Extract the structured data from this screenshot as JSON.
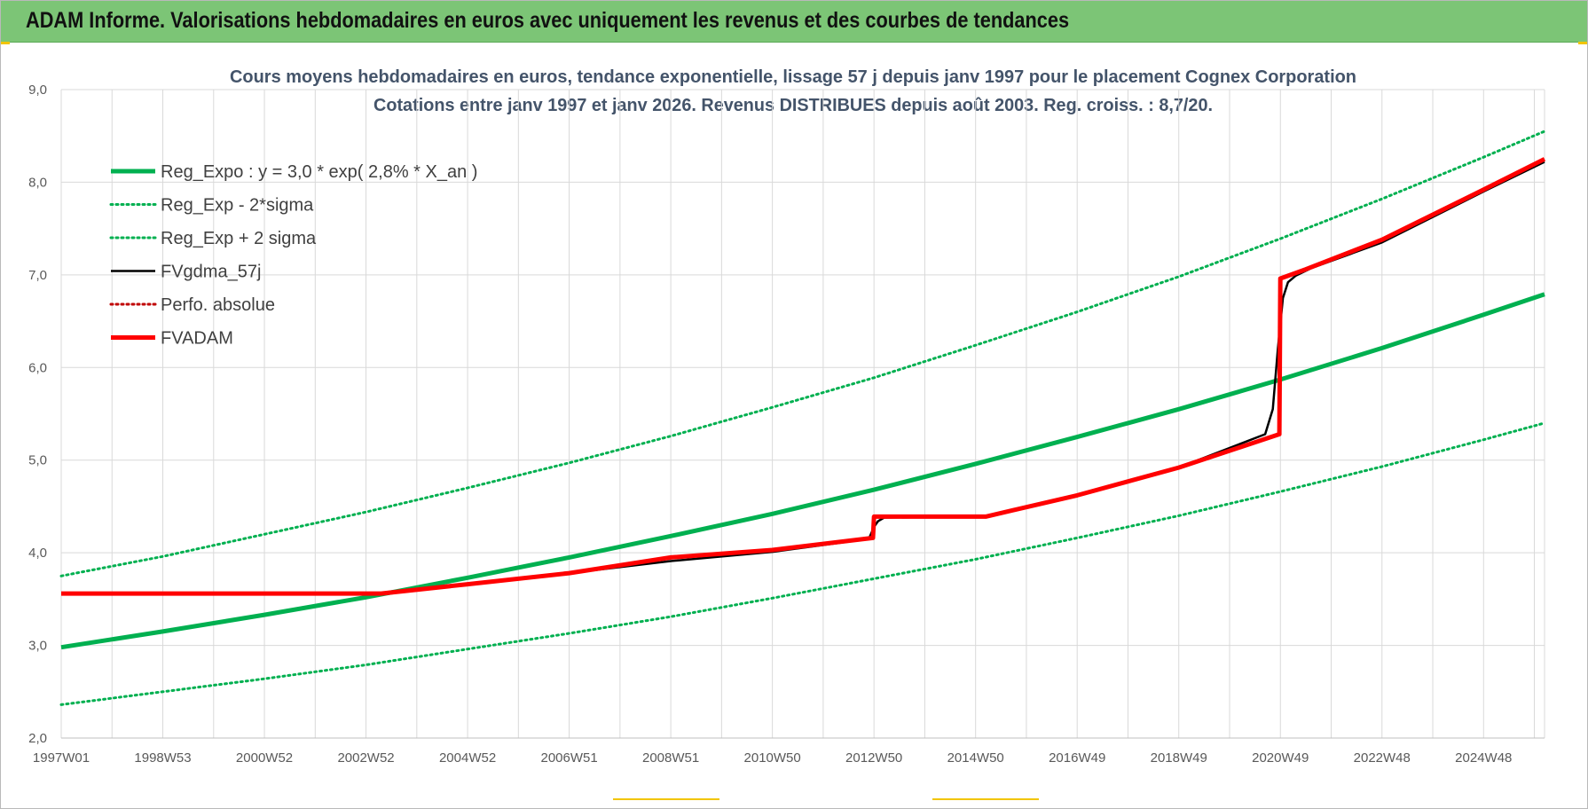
{
  "banner": {
    "title": "ADAM Informe. Valorisations hebdomadaires en euros avec uniquement les revenus et des courbes de tendances"
  },
  "colors": {
    "banner_bg": "#7cc576",
    "regression": "#00b050",
    "fvgdma": "#000000",
    "fvadam": "#ff0000",
    "perfo": "#c00000",
    "grid": "#d9d9d9"
  },
  "chart_data": {
    "type": "line",
    "title_line1": "Cours moyens hebdomadaires en euros, tendance exponentielle, lissage 57 j depuis janv 1997  pour le  placement Cognex Corporation",
    "title_line2": "Cotations entre janv 1997 et janv 2026. Revenus DISTRIBUES depuis août 2003. Reg. croiss. : 8,7/20.",
    "xlabel": "",
    "ylabel": "",
    "ylim": [
      2.0,
      9.0
    ],
    "xlim": [
      1997.0,
      2026.2
    ],
    "grid": true,
    "legend_position": "top-left",
    "y_ticks": [
      "2,0",
      "3,0",
      "4,0",
      "5,0",
      "6,0",
      "7,0",
      "8,0",
      "9,0"
    ],
    "x_ticks": [
      {
        "label": "1997W01",
        "x": 1997.0
      },
      {
        "label": "1998W53",
        "x": 1999.0
      },
      {
        "label": "2000W52",
        "x": 2001.0
      },
      {
        "label": "2002W52",
        "x": 2003.0
      },
      {
        "label": "2004W52",
        "x": 2005.0
      },
      {
        "label": "2006W51",
        "x": 2007.0
      },
      {
        "label": "2008W51",
        "x": 2009.0
      },
      {
        "label": "2010W50",
        "x": 2011.0
      },
      {
        "label": "2012W50",
        "x": 2013.0
      },
      {
        "label": "2014W50",
        "x": 2015.0
      },
      {
        "label": "2016W49",
        "x": 2017.0
      },
      {
        "label": "2018W49",
        "x": 2019.0
      },
      {
        "label": "2020W49",
        "x": 2021.0
      },
      {
        "label": "2022W48",
        "x": 2023.0
      },
      {
        "label": "2024W48",
        "x": 2025.0
      }
    ],
    "series": [
      {
        "name": "Reg_Expo : y = 3,0 * exp( 2,8% *  X_an )",
        "style": "solid-thick",
        "color": "#00b050",
        "x": [
          1997.0,
          1999.0,
          2001.0,
          2003.0,
          2005.0,
          2007.0,
          2009.0,
          2011.0,
          2013.0,
          2015.0,
          2017.0,
          2019.0,
          2021.0,
          2023.0,
          2025.0,
          2026.2
        ],
        "y": [
          2.98,
          3.15,
          3.33,
          3.52,
          3.73,
          3.95,
          4.18,
          4.42,
          4.68,
          4.96,
          5.25,
          5.55,
          5.87,
          6.21,
          6.57,
          6.79
        ]
      },
      {
        "name": "Reg_Exp - 2*sigma",
        "style": "dotted",
        "color": "#00b050",
        "x": [
          1997.0,
          1999.0,
          2001.0,
          2003.0,
          2005.0,
          2007.0,
          2009.0,
          2011.0,
          2013.0,
          2015.0,
          2017.0,
          2019.0,
          2021.0,
          2023.0,
          2025.0,
          2026.2
        ],
        "y": [
          2.36,
          2.5,
          2.64,
          2.79,
          2.96,
          3.13,
          3.31,
          3.51,
          3.72,
          3.93,
          4.16,
          4.4,
          4.66,
          4.93,
          5.22,
          5.4
        ]
      },
      {
        "name": "Reg_Exp + 2 sigma",
        "style": "dotted",
        "color": "#00b050",
        "x": [
          1997.0,
          1999.0,
          2001.0,
          2003.0,
          2005.0,
          2007.0,
          2009.0,
          2011.0,
          2013.0,
          2015.0,
          2017.0,
          2019.0,
          2021.0,
          2023.0,
          2025.0,
          2026.2
        ],
        "y": [
          3.75,
          3.96,
          4.2,
          4.44,
          4.7,
          4.97,
          5.26,
          5.57,
          5.89,
          6.24,
          6.6,
          6.98,
          7.39,
          7.82,
          8.27,
          8.55
        ]
      },
      {
        "name": "FVgdma_57j",
        "style": "solid",
        "color": "#000000",
        "x": [
          1997.0,
          2003.3,
          2005.0,
          2007.0,
          2009.0,
          2011.0,
          2012.9,
          2013.0,
          2013.08,
          2013.2,
          2015.2,
          2017.0,
          2019.0,
          2020.7,
          2020.85,
          2020.95,
          2021.05,
          2021.15,
          2021.3,
          2021.6,
          2023.0,
          2025.0,
          2026.2
        ],
        "y": [
          3.56,
          3.56,
          3.66,
          3.78,
          3.91,
          4.01,
          4.15,
          4.28,
          4.34,
          4.38,
          4.39,
          4.62,
          4.92,
          5.28,
          5.55,
          6.2,
          6.75,
          6.92,
          6.99,
          7.07,
          7.35,
          7.9,
          8.22
        ]
      },
      {
        "name": "Perfo. absolue",
        "style": "dotted",
        "color": "#c00000",
        "x": [],
        "y": []
      },
      {
        "name": "FVADAM",
        "style": "solid-thick",
        "color": "#ff0000",
        "x": [
          1997.0,
          2003.3,
          2005.0,
          2007.0,
          2009.0,
          2011.0,
          2012.98,
          2013.0,
          2015.2,
          2017.0,
          2019.0,
          2020.98,
          2021.0,
          2021.5,
          2023.0,
          2025.0,
          2026.2
        ],
        "y": [
          3.56,
          3.56,
          3.66,
          3.78,
          3.95,
          4.03,
          4.16,
          4.39,
          4.39,
          4.62,
          4.92,
          5.28,
          6.96,
          7.06,
          7.38,
          7.92,
          8.25
        ]
      }
    ]
  }
}
